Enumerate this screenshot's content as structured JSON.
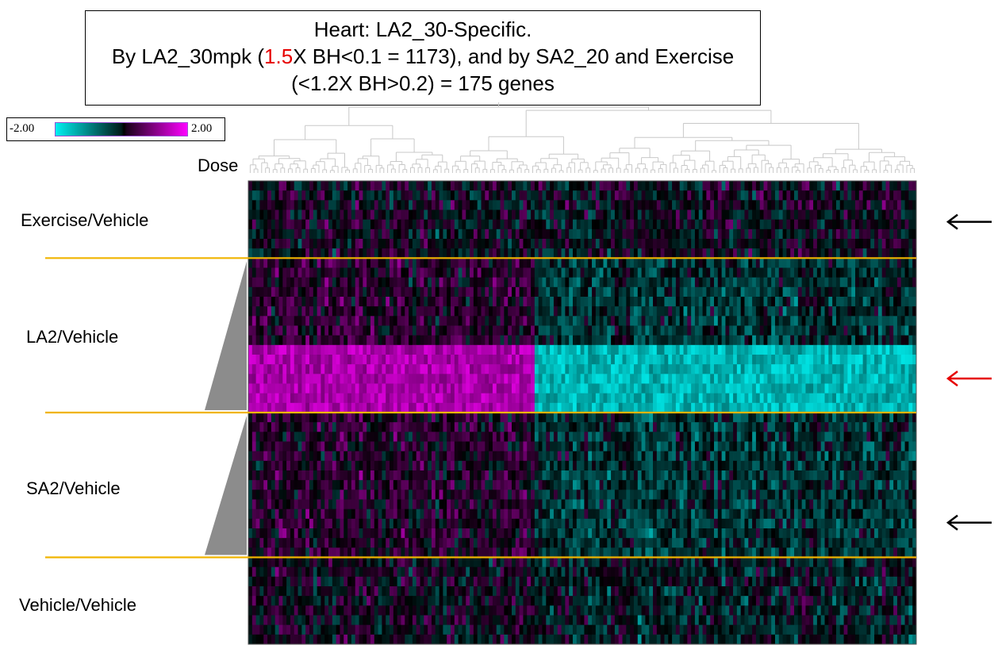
{
  "title": {
    "line1": "Heart: LA2_30-Specific.",
    "line2_pre": "By LA2_30mpk (",
    "line2_hl": "1.5",
    "line2_post": "X BH<0.1 = 1173), and by SA2_20 and Exercise",
    "line3": "(<1.2X BH>0.2) = 175 genes"
  },
  "legend": {
    "min_label": "-2.00",
    "max_label": "2.00"
  },
  "dose_label": "Dose",
  "colors": {
    "low": "#00f0f0",
    "mid": "#000000",
    "high": "#ff00ff",
    "separator": "#f0b400",
    "wedge": "#8c8c8c",
    "arrow_red": "#e60000",
    "arrow_black": "#000000"
  },
  "chart_data": {
    "type": "heatmap",
    "n_genes": 175,
    "color_scale": [
      -2.0,
      2.0
    ],
    "groups": [
      {
        "name": "Exercise/Vehicle",
        "rows": 8,
        "arrow": "black",
        "dose_wedge": false
      },
      {
        "name": "LA2/Vehicle",
        "rows": 16,
        "arrow": "red",
        "dose_wedge": true
      },
      {
        "name": "SA2/Vehicle",
        "rows": 15,
        "arrow": "black",
        "dose_wedge": true
      },
      {
        "name": "Vehicle/Vehicle",
        "rows": 9,
        "arrow": null,
        "dose_wedge": false
      }
    ],
    "cluster_split_fraction": 0.43,
    "pattern_notes": "LA2/Vehicle lower rows strongly up (magenta) in left gene cluster and down (cyan) in right gene cluster; other groups near zero"
  }
}
